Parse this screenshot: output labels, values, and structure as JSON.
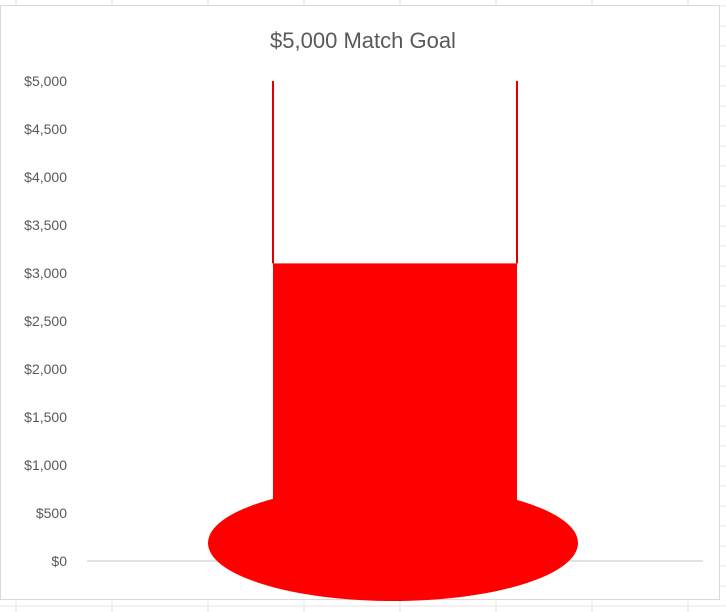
{
  "chart_data": {
    "type": "bar",
    "title": "$5,000 Match Goal",
    "xlabel": "",
    "ylabel": "",
    "categories": [
      ""
    ],
    "series": [
      {
        "values": [
          3100
        ]
      }
    ],
    "goal": 5000,
    "ylim": [
      0,
      5000
    ],
    "yticks": [
      0,
      500,
      1000,
      1500,
      2000,
      2500,
      3000,
      3500,
      4000,
      4500,
      5000
    ],
    "ytick_labels": [
      "$0",
      "$500",
      "$1,000",
      "$1,500",
      "$2,000",
      "$2,500",
      "$3,000",
      "$3,500",
      "$4,000",
      "$4,500",
      "$5,000"
    ],
    "grid": false,
    "legend": "none",
    "colors": {
      "fill": "#ff0000",
      "outline": "#e00000",
      "axis": "#d9d9d9",
      "text": "#595959"
    }
  }
}
